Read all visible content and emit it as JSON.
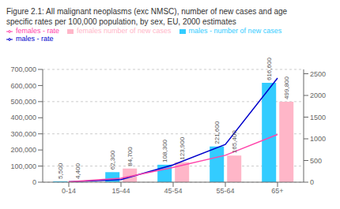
{
  "chart_data": {
    "type": "bar",
    "title": "Figure 2.1: All malignant neoplasms (exc NMSC), number of new cases and age",
    "subtitle": "specific rates per 100,000 population, by sex, EU, 2000 estimates",
    "categories": [
      "0-14",
      "15-44",
      "45-54",
      "55-64",
      "65+"
    ],
    "series": [
      {
        "name": "males - number of new cases",
        "type": "bar",
        "color": "#33CCFF",
        "values": [
          5500,
          62300,
          108300,
          221600,
          616600
        ],
        "value_labels": [
          "5,500",
          "62,300",
          "108,300",
          "221,600",
          "616,600"
        ],
        "data_labels": true
      },
      {
        "name": "females number of new cases",
        "type": "bar",
        "color": "#FFB6C8",
        "values": [
          4400,
          84700,
          123900,
          165400,
          499800
        ],
        "value_labels": [
          "4,400",
          "84,700",
          "123,900",
          "165,400",
          "499,800"
        ],
        "data_labels": true
      },
      {
        "name": "males - rate",
        "type": "line",
        "color": "#0000CC",
        "axis": "y2",
        "values": [
          10,
          60,
          400,
          870,
          2400
        ]
      },
      {
        "name": "females - rate",
        "type": "line",
        "color": "#FF44AA",
        "axis": "y2",
        "values": [
          8,
          90,
          340,
          620,
          1100
        ]
      }
    ],
    "ylim": [
      0,
      700000
    ],
    "yticks": [
      0,
      {
        "value": 100000,
        "label": "100,000"
      },
      {
        "value": 200000,
        "label": "200,000"
      },
      {
        "value": 300000,
        "label": "300,000"
      },
      {
        "value": 400000,
        "label": "400,000"
      },
      {
        "value": 500000,
        "label": "500,000"
      },
      {
        "value": 600000,
        "label": "600,000"
      },
      {
        "value": 700000,
        "label": "700,000"
      }
    ],
    "y2lim": [
      0,
      2600
    ],
    "y2ticks": [
      0,
      500,
      1000,
      1500,
      2000,
      2500
    ],
    "grid": true,
    "legend": "upper left"
  }
}
